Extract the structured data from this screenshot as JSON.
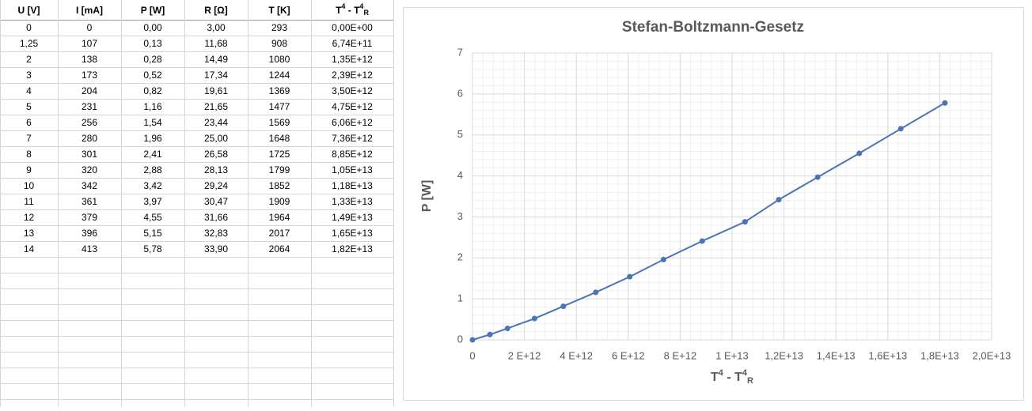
{
  "table": {
    "headers": [
      "U [V]",
      "I [mA]",
      "P [W]",
      "R [Ω]",
      "T [K]",
      [
        "T",
        "4",
        " - T",
        "4",
        "R"
      ]
    ],
    "rows": [
      [
        "0",
        "0",
        "0,00",
        "3,00",
        "293",
        "0,00E+00"
      ],
      [
        "1,25",
        "107",
        "0,13",
        "11,68",
        "908",
        "6,74E+11"
      ],
      [
        "2",
        "138",
        "0,28",
        "14,49",
        "1080",
        "1,35E+12"
      ],
      [
        "3",
        "173",
        "0,52",
        "17,34",
        "1244",
        "2,39E+12"
      ],
      [
        "4",
        "204",
        "0,82",
        "19,61",
        "1369",
        "3,50E+12"
      ],
      [
        "5",
        "231",
        "1,16",
        "21,65",
        "1477",
        "4,75E+12"
      ],
      [
        "6",
        "256",
        "1,54",
        "23,44",
        "1569",
        "6,06E+12"
      ],
      [
        "7",
        "280",
        "1,96",
        "25,00",
        "1648",
        "7,36E+12"
      ],
      [
        "8",
        "301",
        "2,41",
        "26,58",
        "1725",
        "8,85E+12"
      ],
      [
        "9",
        "320",
        "2,88",
        "28,13",
        "1799",
        "1,05E+13"
      ],
      [
        "10",
        "342",
        "3,42",
        "29,24",
        "1852",
        "1,18E+13"
      ],
      [
        "11",
        "361",
        "3,97",
        "30,47",
        "1909",
        "1,33E+13"
      ],
      [
        "12",
        "379",
        "4,55",
        "31,66",
        "1964",
        "1,49E+13"
      ],
      [
        "13",
        "396",
        "5,15",
        "32,83",
        "2017",
        "1,65E+13"
      ],
      [
        "14",
        "413",
        "5,78",
        "33,90",
        "2064",
        "1,82E+13"
      ]
    ]
  },
  "chart_data": {
    "type": "line",
    "title": "Stefan-Boltzmann-Gesetz",
    "x_label": [
      "T",
      "4",
      " - T",
      "4",
      "R"
    ],
    "y_label": "P [W]",
    "x": [
      0,
      674000000000.0,
      1350000000000.0,
      2390000000000.0,
      3500000000000.0,
      4750000000000.0,
      6060000000000.0,
      7360000000000.0,
      8850000000000.0,
      10500000000000.0,
      11800000000000.0,
      13300000000000.0,
      14900000000000.0,
      16500000000000.0,
      18200000000000.0
    ],
    "series": [
      {
        "color": "#4a74b4",
        "values": [
          0,
          0.13,
          0.28,
          0.52,
          0.82,
          1.16,
          1.54,
          1.96,
          2.41,
          2.88,
          3.42,
          3.97,
          4.55,
          5.15,
          5.78
        ]
      }
    ],
    "xlim": [
      0,
      20000000000000.0
    ],
    "xticks": [
      0,
      {
        "value": 2000000000000.0,
        "label": "2 E+12"
      },
      {
        "value": 4000000000000.0,
        "label": "4 E+12"
      },
      {
        "value": 6000000000000.0,
        "label": "6 E+12"
      },
      {
        "value": 8000000000000.0,
        "label": "8 E+12"
      },
      {
        "value": 10000000000000.0,
        "label": "1 E+13"
      },
      {
        "value": 12000000000000.0,
        "label": "1,2E+13"
      },
      {
        "value": 14000000000000.0,
        "label": "1,4E+13"
      },
      {
        "value": 16000000000000.0,
        "label": "1,6E+13"
      },
      {
        "value": 18000000000000.0,
        "label": "1,8E+13"
      },
      {
        "value": 20000000000000.0,
        "label": "2,0E+13"
      }
    ],
    "ylim": [
      0,
      7
    ],
    "yticks": [
      0,
      1,
      2,
      3,
      4,
      5,
      6,
      7
    ],
    "grid": true,
    "minor_grid": true
  }
}
